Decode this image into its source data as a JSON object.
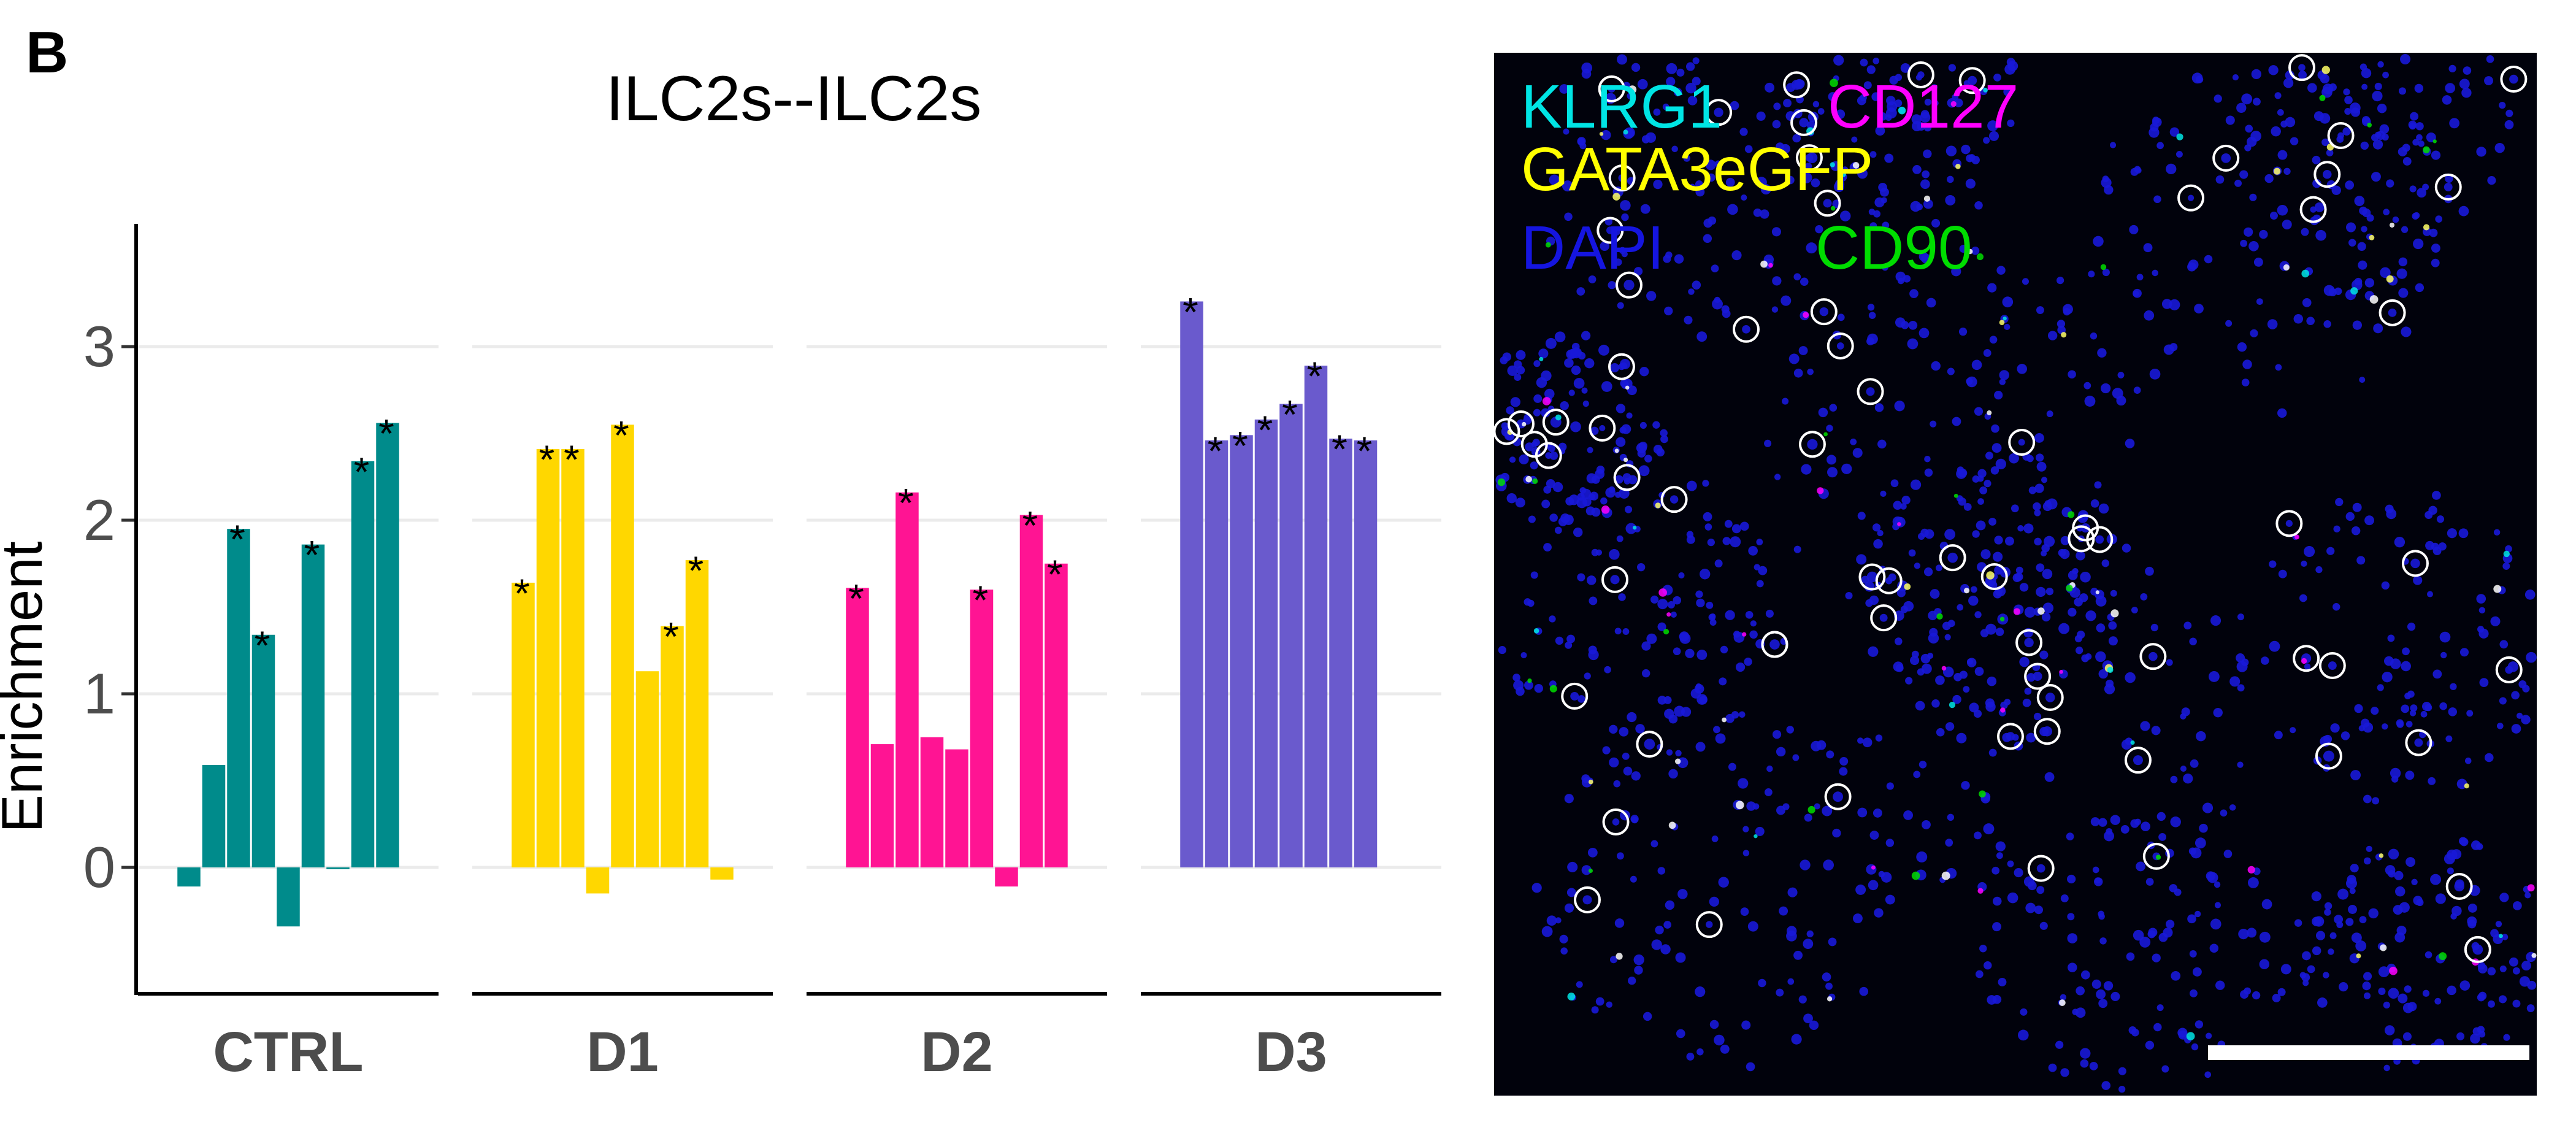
{
  "panel_label": "B",
  "chart_data": {
    "type": "bar",
    "title": "ILC2s--ILC2s",
    "ylabel": "Enrichment",
    "xlabel": "",
    "ylim": [
      -0.7,
      3.7
    ],
    "yticks": [
      0,
      1,
      2,
      3
    ],
    "grid": true,
    "facets": [
      {
        "name": "CTRL",
        "color": "#008B8B",
        "values": [
          -0.11,
          0.59,
          1.95,
          1.34,
          -0.34,
          1.86,
          -0.01,
          2.34,
          2.56
        ],
        "significant": [
          false,
          false,
          true,
          true,
          false,
          true,
          false,
          true,
          true
        ]
      },
      {
        "name": "D1",
        "color": "#FFD700",
        "values": [
          1.64,
          2.41,
          2.41,
          -0.15,
          2.55,
          1.13,
          1.39,
          1.77,
          -0.07
        ],
        "significant": [
          true,
          true,
          true,
          false,
          true,
          false,
          true,
          true,
          false
        ]
      },
      {
        "name": "D2",
        "color": "#FF1493",
        "values": [
          1.61,
          0.71,
          2.16,
          0.75,
          0.68,
          1.6,
          -0.11,
          2.03,
          1.75
        ],
        "significant": [
          true,
          false,
          true,
          false,
          false,
          true,
          false,
          true,
          true
        ]
      },
      {
        "name": "D3",
        "color": "#6A5ACD",
        "values": [
          3.26,
          2.46,
          2.49,
          2.58,
          2.67,
          2.89,
          2.47,
          2.46,
          null
        ],
        "significant": [
          true,
          true,
          true,
          true,
          true,
          true,
          true,
          true,
          false
        ]
      }
    ],
    "significance_marker": "*"
  },
  "micrograph": {
    "legend": [
      {
        "label": "KLRG1",
        "color": "#00E5E5"
      },
      {
        "label": "CD127",
        "color": "#FF00FF"
      },
      {
        "label": "GATA3eGFP",
        "color": "#FFFF00"
      },
      {
        "label": "DAPI",
        "color": "#1515E0"
      },
      {
        "label": "CD90",
        "color": "#00DD00"
      }
    ],
    "scale_bar": true
  }
}
